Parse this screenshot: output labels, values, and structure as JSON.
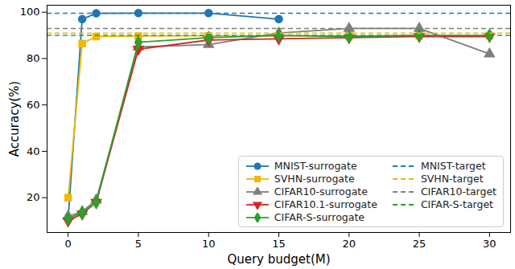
{
  "chart_data": {
    "type": "line",
    "x_label": "Query budget(M)",
    "y_label": "Accuracy(%)",
    "xlim": [
      -1.5,
      31.5
    ],
    "xticks": [
      0,
      5,
      10,
      15,
      20,
      25,
      30
    ],
    "ylim": [
      5,
      103
    ],
    "yticks": [
      20,
      40,
      60,
      80,
      100
    ],
    "grid": false,
    "legend": "lower right",
    "series": [
      {
        "name": "MNIST-surrogate",
        "color": "#1f77b4",
        "marker": "circle",
        "line_style": "solid",
        "x": [
          0,
          1,
          2,
          5,
          10,
          15
        ],
        "values": [
          11,
          97,
          99.5,
          99.6,
          99.6,
          97
        ]
      },
      {
        "name": "SVHN-surrogate",
        "color": "#f0b800",
        "marker": "square",
        "line_style": "solid",
        "x": [
          0,
          1,
          2,
          5,
          10,
          15,
          20,
          25,
          30
        ],
        "values": [
          20,
          86.5,
          89.5,
          89.7,
          89.8,
          89.8,
          89.8,
          89.8,
          89.9
        ]
      },
      {
        "name": "CIFAR10-surrogate",
        "color": "#7f7f7f",
        "marker": "triangle-up",
        "line_style": "solid",
        "x": [
          0,
          1,
          2,
          5,
          10,
          15,
          20,
          25,
          30
        ],
        "values": [
          12,
          14,
          19,
          85,
          86,
          91,
          93,
          93,
          82
        ]
      },
      {
        "name": "CIFAR10.1-surrogate",
        "color": "#d62728",
        "marker": "triangle-down",
        "line_style": "solid",
        "x": [
          0,
          1,
          2,
          5,
          10,
          15,
          20,
          25,
          30
        ],
        "values": [
          10,
          13,
          18,
          84,
          88,
          88.5,
          89,
          89.5,
          89.5
        ]
      },
      {
        "name": "CIFAR-S-surrogate",
        "color": "#2ca02c",
        "marker": "diamond",
        "line_style": "solid",
        "x": [
          0,
          1,
          2,
          5,
          10,
          15,
          20,
          25,
          30
        ],
        "values": [
          11,
          13.5,
          18,
          87,
          89,
          90,
          89.5,
          90,
          90
        ]
      },
      {
        "name": "MNIST-target",
        "type": "hline",
        "color": "#1f77b4",
        "line_style": "dashed",
        "values": [
          99.5
        ]
      },
      {
        "name": "SVHN-target",
        "type": "hline",
        "color": "#f0b800",
        "line_style": "dashed",
        "values": [
          91
        ]
      },
      {
        "name": "CIFAR10-target",
        "type": "hline",
        "color": "#7f7f7f",
        "line_style": "dashed",
        "values": [
          93
        ]
      },
      {
        "name": "CIFAR-S-target",
        "type": "hline",
        "color": "#2ca02c",
        "line_style": "dashed",
        "values": [
          90
        ]
      }
    ]
  }
}
